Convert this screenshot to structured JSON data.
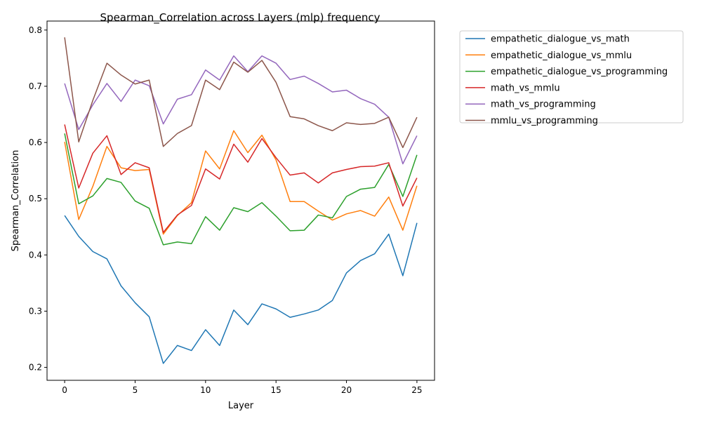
{
  "chart_data": {
    "type": "line",
    "title": "Spearman_Correlation across Layers (mlp) frequency",
    "xlabel": "Layer",
    "ylabel": "Spearman_Correlation",
    "xlim": [
      -1.25,
      26.25
    ],
    "ylim": [
      0.177,
      0.816
    ],
    "xticks": [
      0,
      5,
      10,
      15,
      20,
      25
    ],
    "yticks": [
      0.2,
      0.3,
      0.4,
      0.5,
      0.6,
      0.7,
      0.8
    ],
    "grid": false,
    "legend_position": "outside-right-top",
    "x": [
      0,
      1,
      2,
      3,
      4,
      5,
      6,
      7,
      8,
      9,
      10,
      11,
      12,
      13,
      14,
      15,
      16,
      17,
      18,
      19,
      20,
      21,
      22,
      23,
      24,
      25
    ],
    "series": [
      {
        "name": "empathetic_dialogue_vs_math",
        "color": "#1f77b4",
        "values": [
          0.47,
          0.433,
          0.406,
          0.393,
          0.345,
          0.315,
          0.29,
          0.207,
          0.239,
          0.23,
          0.267,
          0.239,
          0.302,
          0.276,
          0.313,
          0.304,
          0.289,
          0.295,
          0.302,
          0.319,
          0.368,
          0.39,
          0.402,
          0.437,
          0.363,
          0.457
        ]
      },
      {
        "name": "empathetic_dialogue_vs_mmlu",
        "color": "#ff7f0e",
        "values": [
          0.601,
          0.463,
          0.522,
          0.593,
          0.555,
          0.55,
          0.552,
          0.437,
          0.47,
          0.493,
          0.585,
          0.553,
          0.621,
          0.582,
          0.613,
          0.569,
          0.495,
          0.495,
          0.478,
          0.462,
          0.473,
          0.479,
          0.469,
          0.503,
          0.444,
          0.523
        ]
      },
      {
        "name": "empathetic_dialogue_vs_programming",
        "color": "#2ca02c",
        "values": [
          0.616,
          0.491,
          0.505,
          0.536,
          0.529,
          0.496,
          0.483,
          0.418,
          0.423,
          0.42,
          0.468,
          0.444,
          0.484,
          0.477,
          0.493,
          0.469,
          0.443,
          0.444,
          0.471,
          0.466,
          0.504,
          0.517,
          0.52,
          0.561,
          0.504,
          0.578
        ]
      },
      {
        "name": "math_vs_mmlu",
        "color": "#d62728",
        "values": [
          0.632,
          0.519,
          0.581,
          0.612,
          0.543,
          0.564,
          0.555,
          0.44,
          0.471,
          0.488,
          0.553,
          0.535,
          0.597,
          0.565,
          0.607,
          0.573,
          0.542,
          0.546,
          0.528,
          0.546,
          0.552,
          0.557,
          0.558,
          0.564,
          0.487,
          0.537
        ]
      },
      {
        "name": "math_vs_programming",
        "color": "#9467bd",
        "values": [
          0.705,
          0.623,
          0.667,
          0.705,
          0.673,
          0.711,
          0.701,
          0.633,
          0.677,
          0.685,
          0.729,
          0.711,
          0.754,
          0.726,
          0.754,
          0.741,
          0.712,
          0.718,
          0.705,
          0.69,
          0.693,
          0.678,
          0.668,
          0.645,
          0.562,
          0.612
        ]
      },
      {
        "name": "mmlu_vs_programming",
        "color": "#8c564b",
        "values": [
          0.787,
          0.601,
          0.675,
          0.741,
          0.72,
          0.704,
          0.711,
          0.593,
          0.616,
          0.63,
          0.711,
          0.694,
          0.743,
          0.725,
          0.746,
          0.707,
          0.646,
          0.642,
          0.63,
          0.621,
          0.635,
          0.632,
          0.634,
          0.645,
          0.591,
          0.645
        ]
      }
    ]
  }
}
